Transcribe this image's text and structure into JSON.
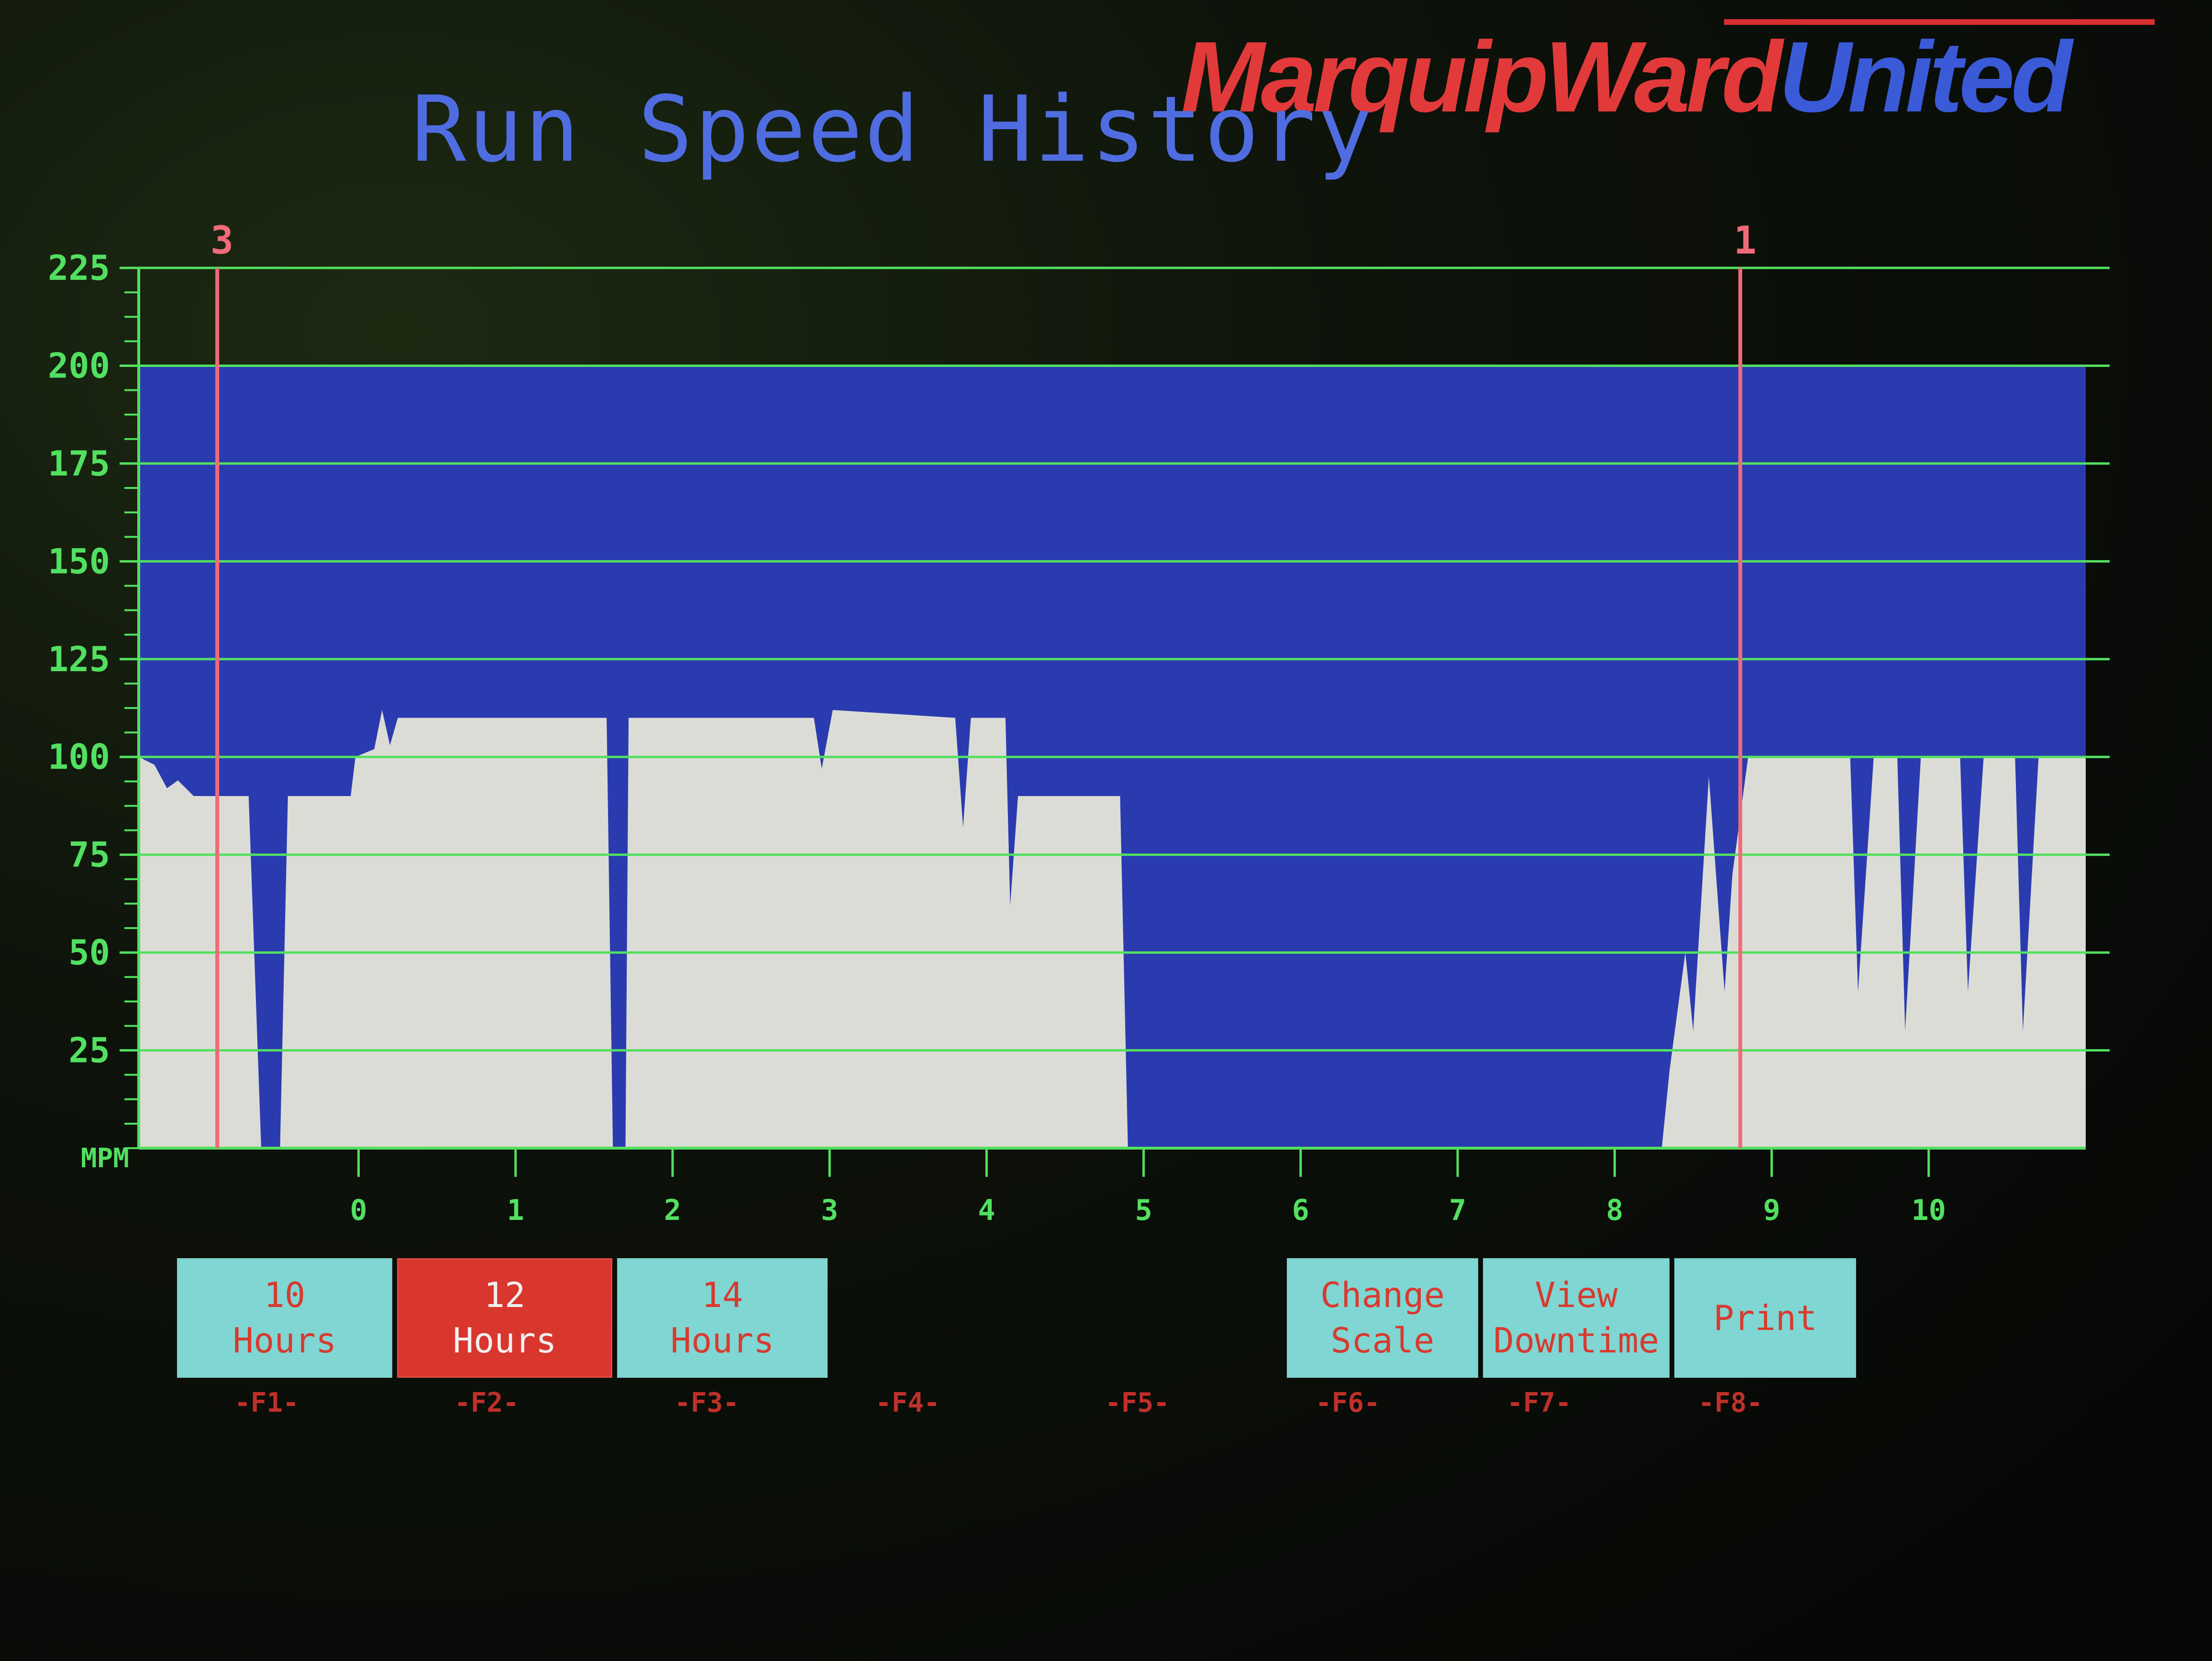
{
  "brand": {
    "name_part1": "MarquipWard",
    "name_part2": "United"
  },
  "title": "Run Speed History",
  "function_keys": [
    {
      "line1": "10",
      "line2": "Hours",
      "key": "-F1-",
      "active": false
    },
    {
      "line1": "12",
      "line2": "Hours",
      "key": "-F2-",
      "active": true
    },
    {
      "line1": "14",
      "line2": "Hours",
      "key": "-F3-",
      "active": false
    },
    {
      "key": "-F4-"
    },
    {
      "key": "-F5-"
    },
    {
      "line1": "Change",
      "line2": "Scale",
      "key": "-F6-",
      "active": false
    },
    {
      "line1": "View",
      "line2": "Downtime",
      "key": "-F7-",
      "active": false
    },
    {
      "line1": "Print",
      "line2": "",
      "key": "-F8-",
      "active": false
    }
  ],
  "colors": {
    "plot_bg": "#2a3bb0",
    "bars": "#dcdcd6",
    "grid": "#52e060",
    "axis_text": "#52e060",
    "marker": "#f06a7a"
  },
  "chart_data": {
    "type": "area",
    "ylabel": "MPM",
    "ylim": [
      0,
      225
    ],
    "yticks": [
      25,
      50,
      75,
      100,
      125,
      150,
      175,
      200,
      225
    ],
    "grid": true,
    "plot_top": 200,
    "xlim": [
      -1.4,
      11.0
    ],
    "xticks": [
      0,
      1,
      2,
      3,
      4,
      5,
      6,
      7,
      8,
      9,
      10
    ],
    "markers": [
      {
        "label": "3",
        "x": -0.9
      },
      {
        "label": "1",
        "x": 8.8
      }
    ],
    "series": [
      {
        "points": [
          [
            -1.4,
            100
          ],
          [
            -1.3,
            98
          ],
          [
            -1.22,
            92
          ],
          [
            -1.15,
            94
          ],
          [
            -1.05,
            90
          ],
          [
            -0.7,
            90
          ],
          [
            -0.62,
            0
          ],
          [
            -0.5,
            0
          ],
          [
            -0.45,
            90
          ],
          [
            -0.05,
            90
          ],
          [
            -0.02,
            100
          ],
          [
            0.1,
            102
          ],
          [
            0.15,
            112
          ],
          [
            0.2,
            103
          ],
          [
            0.25,
            110
          ],
          [
            1.58,
            110
          ],
          [
            1.62,
            0
          ],
          [
            1.7,
            0
          ],
          [
            1.72,
            110
          ],
          [
            2.9,
            110
          ],
          [
            2.95,
            97
          ],
          [
            3.02,
            112
          ],
          [
            3.8,
            110
          ],
          [
            3.85,
            82
          ],
          [
            3.9,
            110
          ],
          [
            4.12,
            110
          ],
          [
            4.15,
            62
          ],
          [
            4.2,
            90
          ],
          [
            4.85,
            90
          ],
          [
            4.9,
            0
          ],
          [
            8.3,
            0
          ],
          [
            8.35,
            20
          ],
          [
            8.45,
            50
          ],
          [
            8.5,
            30
          ],
          [
            8.6,
            95
          ],
          [
            8.7,
            40
          ],
          [
            8.75,
            70
          ],
          [
            8.85,
            100
          ],
          [
            9.5,
            100
          ],
          [
            9.55,
            40
          ],
          [
            9.65,
            100
          ],
          [
            9.8,
            100
          ],
          [
            9.85,
            30
          ],
          [
            9.95,
            100
          ],
          [
            10.2,
            100
          ],
          [
            10.25,
            40
          ],
          [
            10.35,
            100
          ],
          [
            10.55,
            100
          ],
          [
            10.6,
            30
          ],
          [
            10.7,
            100
          ],
          [
            11.0,
            100
          ]
        ]
      }
    ]
  }
}
